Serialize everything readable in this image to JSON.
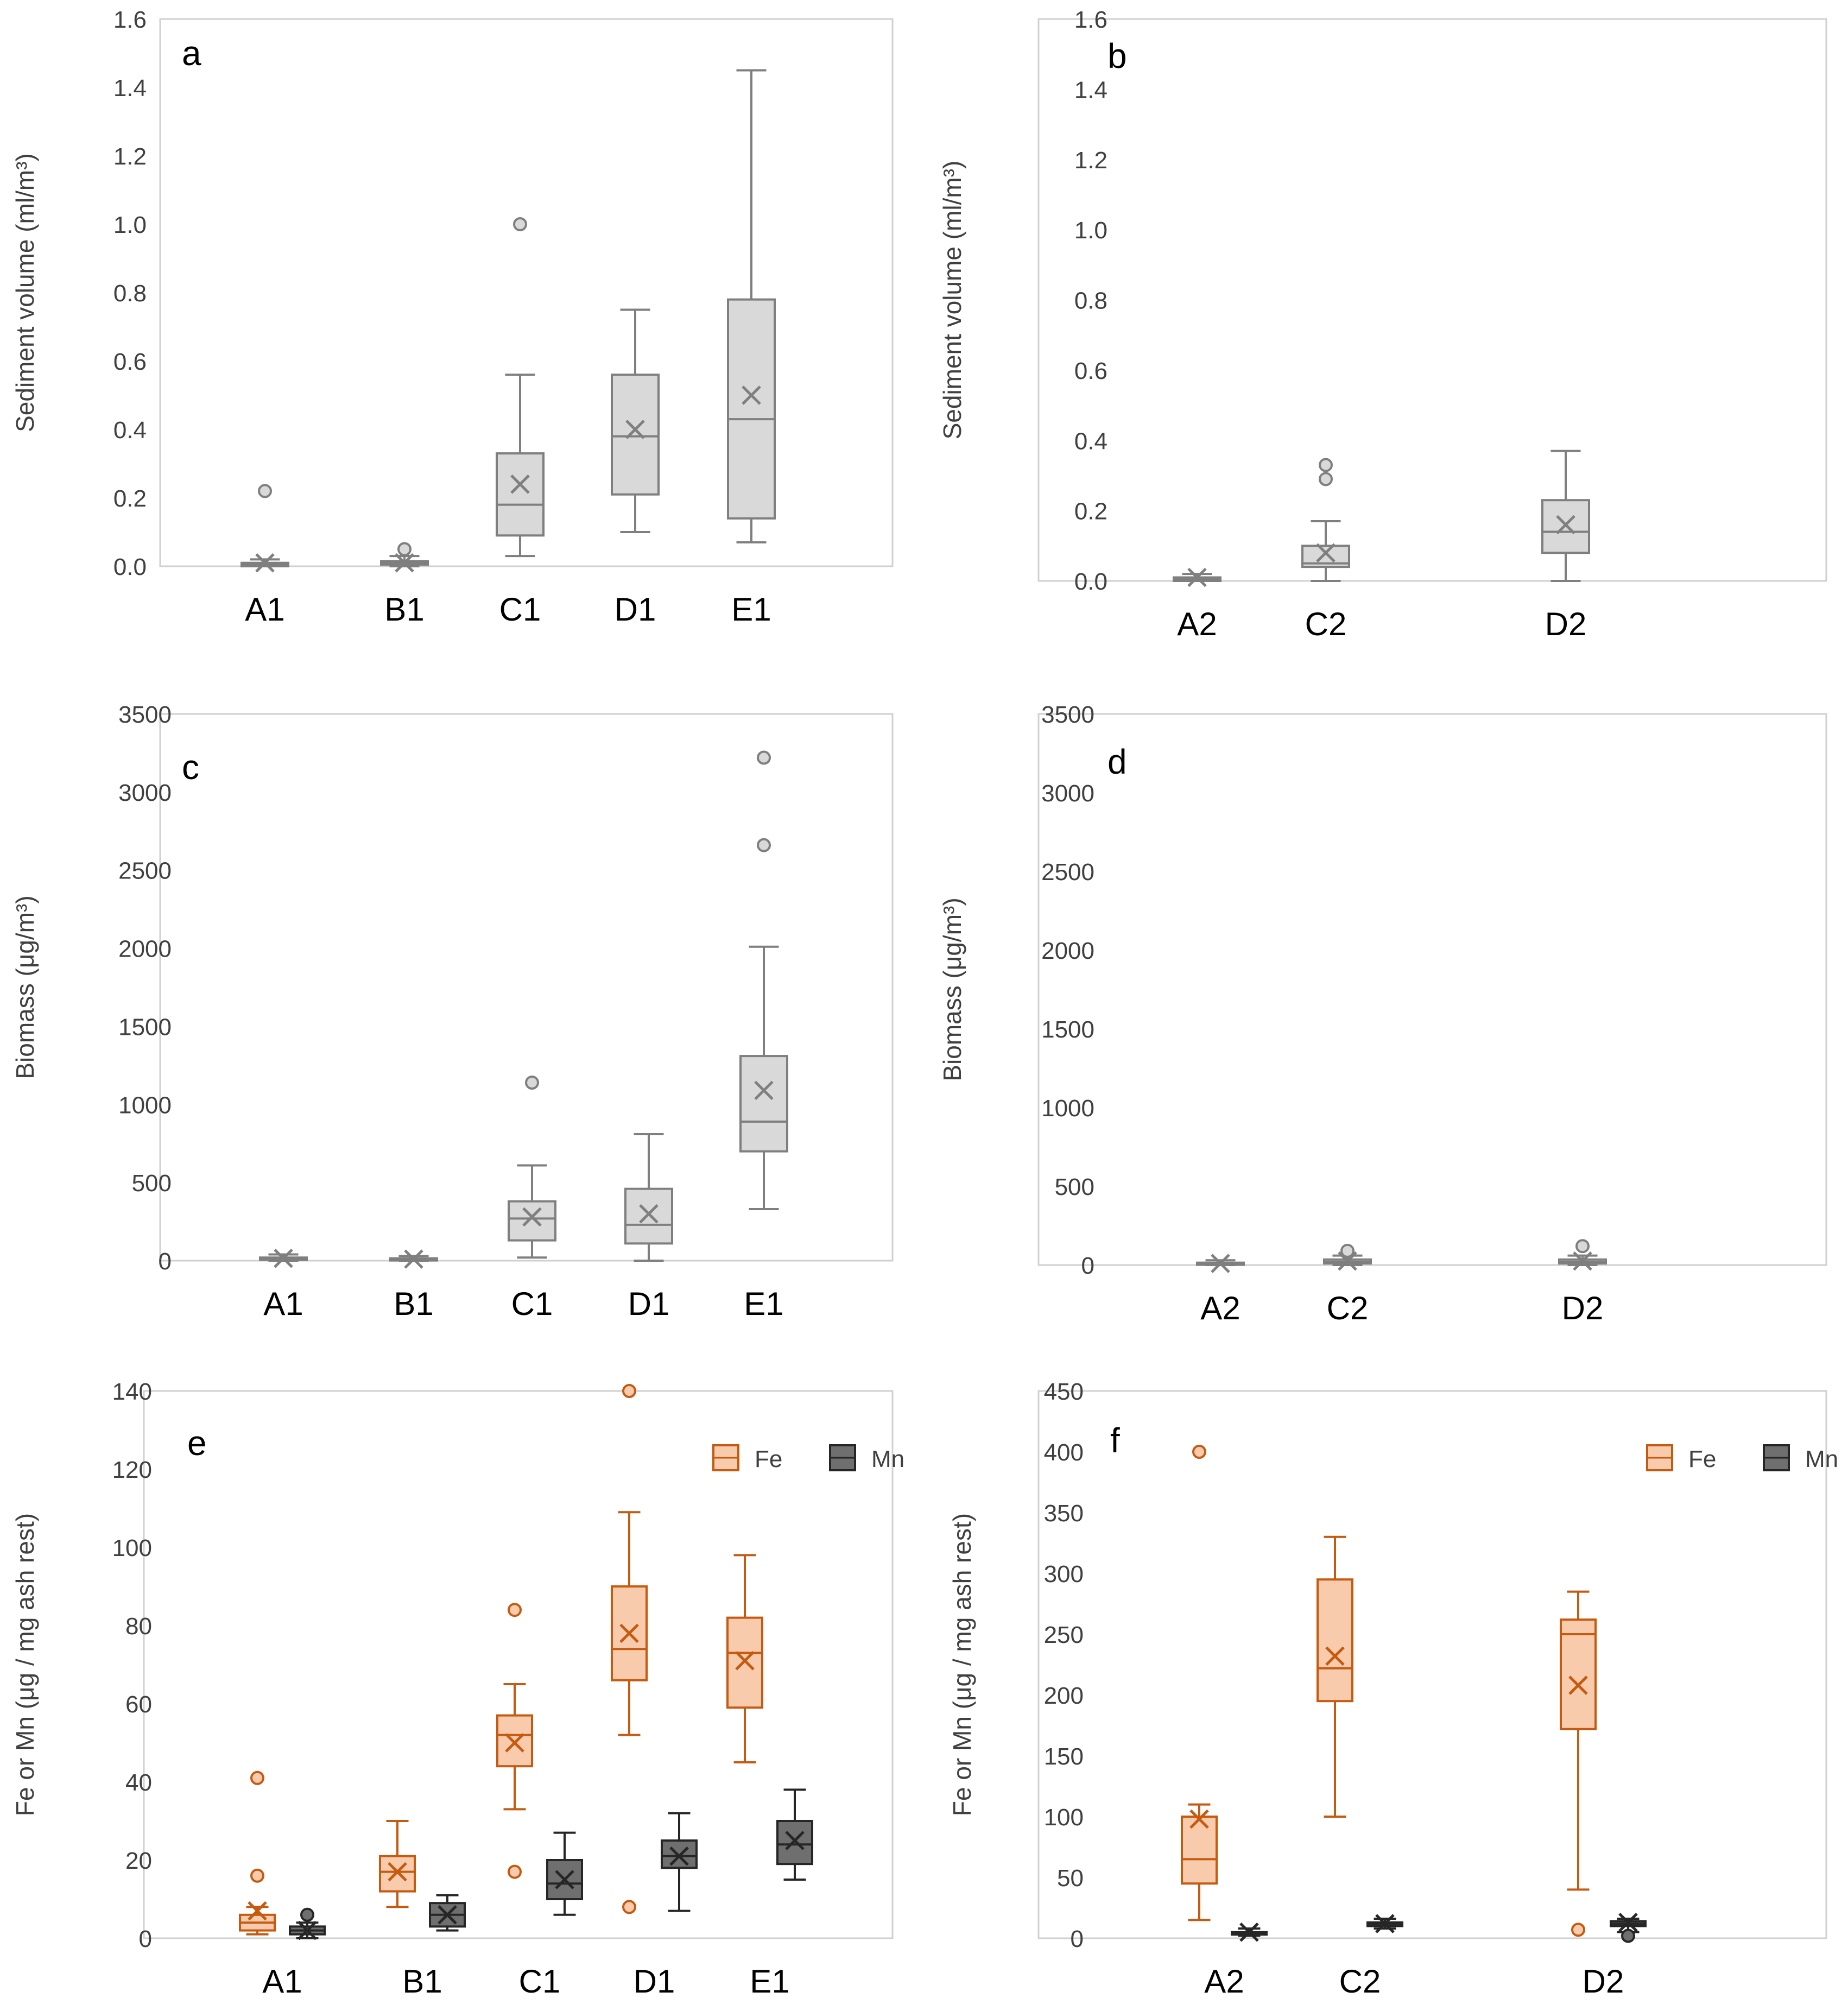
{
  "colors": {
    "frame": "#d0d0d0",
    "grey_box_fill": "#d9d9d9",
    "grey_box_stroke": "#7f7f7f",
    "fe_fill": "#f8cbad",
    "fe_stroke": "#c55a11",
    "mn_fill": "#6f6f6f",
    "mn_stroke": "#262626",
    "text": "#404040"
  },
  "chart_data": [
    {
      "id": "a",
      "type": "box",
      "panel_label": "a",
      "ylabel": "Sediment volume (ml/m³)",
      "ylim": [
        0,
        1.6
      ],
      "yticks": [
        "0.0",
        "0.2",
        "0.4",
        "0.6",
        "0.8",
        "1.0",
        "1.2",
        "1.4",
        "1.6"
      ],
      "categories": [
        "A1",
        "B1",
        "C1",
        "D1",
        "E1"
      ],
      "series": [
        {
          "style": "grey",
          "boxes": [
            {
              "category": "A1",
              "min": 0.0,
              "q1": 0.0,
              "median": 0.005,
              "q3": 0.01,
              "max": 0.02,
              "mean": 0.01,
              "outliers": [
                0.22
              ]
            },
            {
              "category": "B1",
              "min": 0.0,
              "q1": 0.005,
              "median": 0.01,
              "q3": 0.015,
              "max": 0.03,
              "mean": 0.01,
              "outliers": [
                0.05
              ]
            },
            {
              "category": "C1",
              "min": 0.03,
              "q1": 0.09,
              "median": 0.18,
              "q3": 0.33,
              "max": 0.56,
              "mean": 0.24,
              "outliers": [
                1.0
              ]
            },
            {
              "category": "D1",
              "min": 0.1,
              "q1": 0.21,
              "median": 0.38,
              "q3": 0.56,
              "max": 0.75,
              "mean": 0.4,
              "outliers": []
            },
            {
              "category": "E1",
              "min": 0.07,
              "q1": 0.14,
              "median": 0.43,
              "q3": 0.78,
              "max": 1.45,
              "mean": 0.5,
              "outliers": []
            }
          ]
        }
      ]
    },
    {
      "id": "b",
      "type": "box",
      "panel_label": "b",
      "ylabel": "Sediment volume (ml/m³)",
      "ylim": [
        0,
        1.6
      ],
      "yticks": [
        "0.0",
        "0.2",
        "0.4",
        "0.6",
        "0.8",
        "1.0",
        "1.2",
        "1.4",
        "1.6"
      ],
      "categories": [
        "A2",
        "C2",
        "D2"
      ],
      "series": [
        {
          "style": "grey",
          "boxes": [
            {
              "category": "A2",
              "min": 0.0,
              "q1": 0.0,
              "median": 0.005,
              "q3": 0.01,
              "max": 0.02,
              "mean": 0.01,
              "outliers": []
            },
            {
              "category": "C2",
              "min": 0.0,
              "q1": 0.04,
              "median": 0.05,
              "q3": 0.1,
              "max": 0.17,
              "mean": 0.08,
              "outliers": [
                0.29,
                0.33
              ]
            },
            {
              "category": "D2",
              "min": 0.0,
              "q1": 0.08,
              "median": 0.14,
              "q3": 0.23,
              "max": 0.37,
              "mean": 0.16,
              "outliers": []
            }
          ]
        }
      ]
    },
    {
      "id": "c",
      "type": "box",
      "panel_label": "c",
      "ylabel": "Biomass (μg/m³)",
      "ylim": [
        0,
        3500
      ],
      "yticks": [
        "0",
        "500",
        "1000",
        "1500",
        "2000",
        "2500",
        "3000",
        "3500"
      ],
      "categories": [
        "A1",
        "B1",
        "C1",
        "D1",
        "E1"
      ],
      "series": [
        {
          "style": "grey",
          "boxes": [
            {
              "category": "A1",
              "min": 0,
              "q1": 5,
              "median": 10,
              "q3": 20,
              "max": 40,
              "mean": 15,
              "outliers": []
            },
            {
              "category": "B1",
              "min": 0,
              "q1": 5,
              "median": 10,
              "q3": 15,
              "max": 30,
              "mean": 10,
              "outliers": []
            },
            {
              "category": "C1",
              "min": 20,
              "q1": 130,
              "median": 270,
              "q3": 380,
              "max": 610,
              "mean": 280,
              "outliers": [
                1140
              ]
            },
            {
              "category": "D1",
              "min": 0,
              "q1": 110,
              "median": 230,
              "q3": 460,
              "max": 810,
              "mean": 300,
              "outliers": []
            },
            {
              "category": "E1",
              "min": 330,
              "q1": 700,
              "median": 890,
              "q3": 1310,
              "max": 2010,
              "mean": 1090,
              "outliers": [
                2660,
                3220
              ]
            }
          ]
        }
      ]
    },
    {
      "id": "d",
      "type": "box",
      "panel_label": "d",
      "ylabel": "Biomass (μg/m³)",
      "ylim": [
        0,
        3500
      ],
      "yticks": [
        "0",
        "500",
        "1000",
        "1500",
        "2000",
        "2500",
        "3000",
        "3500"
      ],
      "categories": [
        "A2",
        "C2",
        "D2"
      ],
      "series": [
        {
          "style": "grey",
          "boxes": [
            {
              "category": "A2",
              "min": 0,
              "q1": 5,
              "median": 10,
              "q3": 15,
              "max": 30,
              "mean": 10,
              "outliers": []
            },
            {
              "category": "C2",
              "min": 0,
              "q1": 10,
              "median": 20,
              "q3": 35,
              "max": 60,
              "mean": 25,
              "outliers": [
                90
              ]
            },
            {
              "category": "D2",
              "min": 0,
              "q1": 10,
              "median": 20,
              "q3": 35,
              "max": 60,
              "mean": 25,
              "outliers": [
                120
              ]
            }
          ]
        }
      ]
    },
    {
      "id": "e",
      "type": "box",
      "panel_label": "e",
      "ylabel": "Fe or Mn (μg / mg ash rest)",
      "ylim": [
        0,
        140
      ],
      "yticks": [
        "0",
        "20",
        "40",
        "60",
        "80",
        "100",
        "120",
        "140"
      ],
      "categories": [
        "A1",
        "B1",
        "C1",
        "D1",
        "E1"
      ],
      "legend": {
        "position": "top-right",
        "entries": [
          "Fe",
          "Mn"
        ]
      },
      "series": [
        {
          "name": "Fe",
          "style": "fe",
          "boxes": [
            {
              "category": "A1",
              "min": 1,
              "q1": 2,
              "median": 4,
              "q3": 6,
              "max": 8,
              "mean": 7,
              "outliers": [
                16,
                41
              ]
            },
            {
              "category": "B1",
              "min": 8,
              "q1": 12,
              "median": 17,
              "q3": 21,
              "max": 30,
              "mean": 17,
              "outliers": []
            },
            {
              "category": "C1",
              "min": 33,
              "q1": 44,
              "median": 52,
              "q3": 57,
              "max": 65,
              "mean": 50,
              "outliers": [
                17,
                84
              ]
            },
            {
              "category": "D1",
              "min": 52,
              "q1": 66,
              "median": 74,
              "q3": 90,
              "max": 109,
              "mean": 78,
              "outliers": [
                8,
                140
              ]
            },
            {
              "category": "E1",
              "min": 45,
              "q1": 59,
              "median": 73,
              "q3": 82,
              "max": 98,
              "mean": 71,
              "outliers": []
            }
          ]
        },
        {
          "name": "Mn",
          "style": "mn",
          "boxes": [
            {
              "category": "A1",
              "min": 0,
              "q1": 1,
              "median": 2,
              "q3": 3,
              "max": 4,
              "mean": 2,
              "outliers": [
                6
              ]
            },
            {
              "category": "B1",
              "min": 2,
              "q1": 3,
              "median": 6,
              "q3": 9,
              "max": 11,
              "mean": 6,
              "outliers": []
            },
            {
              "category": "C1",
              "min": 6,
              "q1": 10,
              "median": 14,
              "q3": 20,
              "max": 27,
              "mean": 15,
              "outliers": []
            },
            {
              "category": "D1",
              "min": 7,
              "q1": 18,
              "median": 21,
              "q3": 25,
              "max": 32,
              "mean": 21,
              "outliers": []
            },
            {
              "category": "E1",
              "min": 15,
              "q1": 19,
              "median": 24,
              "q3": 30,
              "max": 38,
              "mean": 25,
              "outliers": []
            }
          ]
        }
      ]
    },
    {
      "id": "f",
      "type": "box",
      "panel_label": "f",
      "ylabel": "Fe or Mn (μg / mg ash rest)",
      "ylim": [
        0,
        450
      ],
      "yticks": [
        "0",
        "50",
        "100",
        "150",
        "200",
        "250",
        "300",
        "350",
        "400",
        "450"
      ],
      "categories": [
        "A2",
        "C2",
        "D2"
      ],
      "legend": {
        "position": "top-right",
        "entries": [
          "Fe",
          "Mn"
        ]
      },
      "series": [
        {
          "name": "Fe",
          "style": "fe",
          "boxes": [
            {
              "category": "A2",
              "min": 15,
              "q1": 45,
              "median": 65,
              "q3": 100,
              "max": 110,
              "mean": 98,
              "outliers": [
                400
              ]
            },
            {
              "category": "C2",
              "min": 100,
              "q1": 195,
              "median": 222,
              "q3": 295,
              "max": 330,
              "mean": 232,
              "outliers": []
            },
            {
              "category": "D2",
              "min": 40,
              "q1": 172,
              "median": 250,
              "q3": 262,
              "max": 285,
              "mean": 208,
              "outliers": [
                7
              ]
            }
          ]
        },
        {
          "name": "Mn",
          "style": "mn",
          "boxes": [
            {
              "category": "A2",
              "min": 2,
              "q1": 3,
              "median": 4,
              "q3": 5,
              "max": 8,
              "mean": 5,
              "outliers": []
            },
            {
              "category": "C2",
              "min": 8,
              "q1": 10,
              "median": 12,
              "q3": 13,
              "max": 16,
              "mean": 12,
              "outliers": []
            },
            {
              "category": "D2",
              "min": 5,
              "q1": 10,
              "median": 12,
              "q3": 14,
              "max": 16,
              "mean": 13,
              "outliers": [
                2
              ]
            }
          ]
        }
      ]
    }
  ]
}
